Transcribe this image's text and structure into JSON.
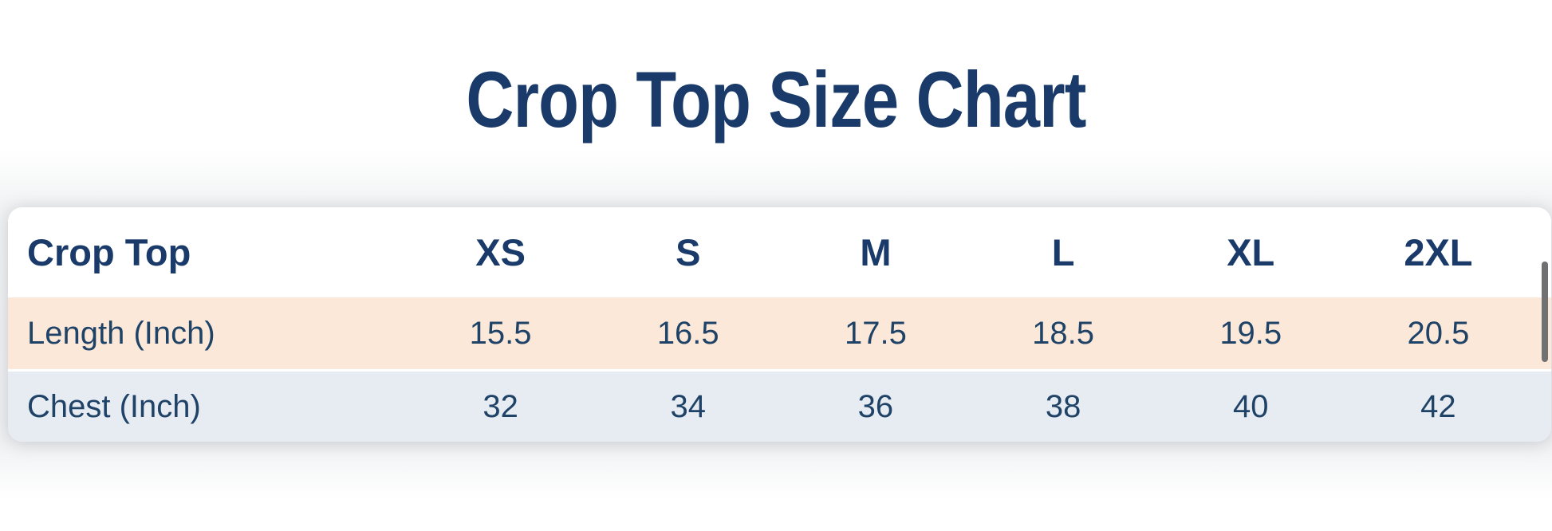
{
  "page_title": "Crop Top Size Chart",
  "table": {
    "header": {
      "label": "Crop Top",
      "sizes": [
        "XS",
        "S",
        "M",
        "L",
        "XL",
        "2XL"
      ]
    },
    "rows": [
      {
        "label": "Length (Inch)",
        "values": [
          "15.5",
          "16.5",
          "17.5",
          "18.5",
          "19.5",
          "20.5"
        ]
      },
      {
        "label": "Chest (Inch)",
        "values": [
          "32",
          "34",
          "36",
          "38",
          "40",
          "42"
        ]
      }
    ]
  },
  "colors": {
    "title_text": "#1a3a6a",
    "header_text": "#1a3a6a",
    "body_text": "#1f4267",
    "length_row_bg": "#fce8d9",
    "chest_row_bg": "#e7ebf2",
    "card_bg": "#ffffff",
    "band_bg": "#f1f2f4",
    "scrollbar_thumb": "#717173"
  }
}
